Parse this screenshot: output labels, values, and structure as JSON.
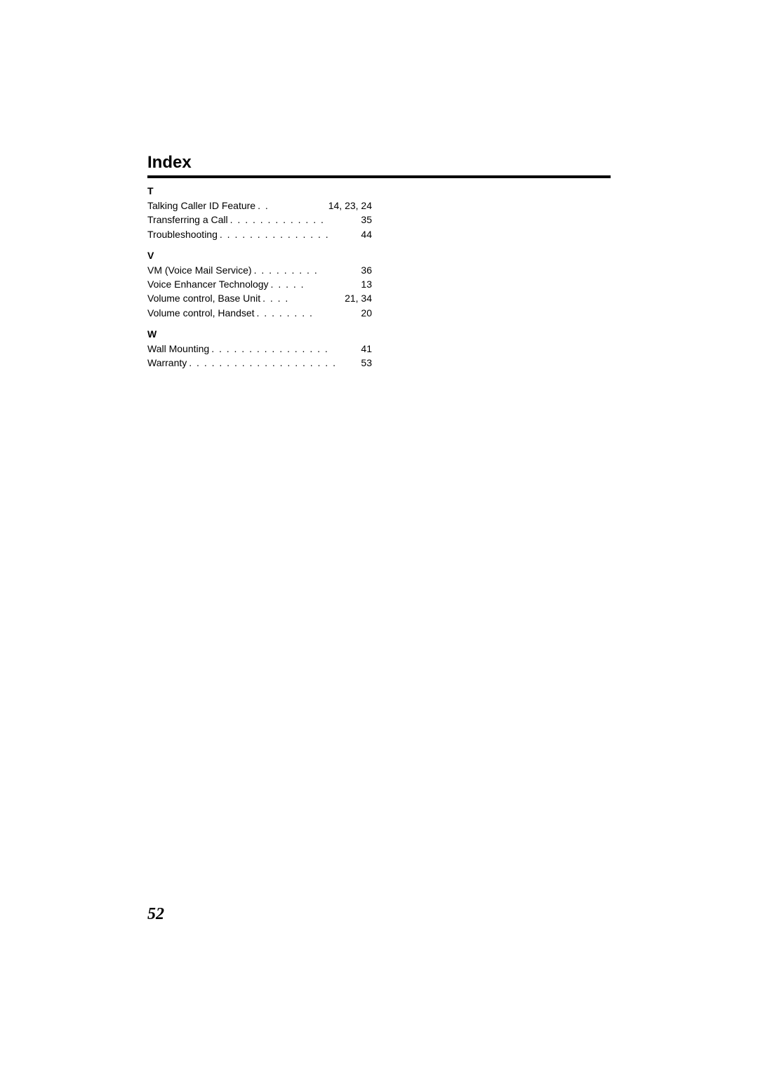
{
  "page": {
    "title": "Index",
    "number": "52"
  },
  "sections": [
    {
      "letter": "T",
      "entries": [
        {
          "label": "Talking Caller ID Feature",
          "dots": ". .",
          "pages": "14, 23, 24"
        },
        {
          "label": "Transferring a Call",
          "dots": ". . . . . . . . . . . . .",
          "pages": "35"
        },
        {
          "label": "Troubleshooting",
          "dots": ". . . . . . . . . . . . . . .",
          "pages": "44"
        }
      ]
    },
    {
      "letter": "V",
      "entries": [
        {
          "label": "VM (Voice Mail Service)",
          "dots": ". . . . . . . . .",
          "pages": "36"
        },
        {
          "label": "Voice Enhancer Technology",
          "dots": " . . . . .",
          "pages": "13"
        },
        {
          "label": "Volume control, Base Unit",
          "dots": " . . . .",
          "pages": "21, 34"
        },
        {
          "label": "Volume control, Handset",
          "dots": " . . . . . . . .",
          "pages": "20"
        }
      ]
    },
    {
      "letter": "W",
      "entries": [
        {
          "label": "Wall Mounting",
          "dots": " . . . . . . . . . . . . . . . .",
          "pages": "41"
        },
        {
          "label": "Warranty",
          "dots": " . . . . . . . . . . . . . . . . . . . .",
          "pages": "53"
        }
      ]
    }
  ]
}
